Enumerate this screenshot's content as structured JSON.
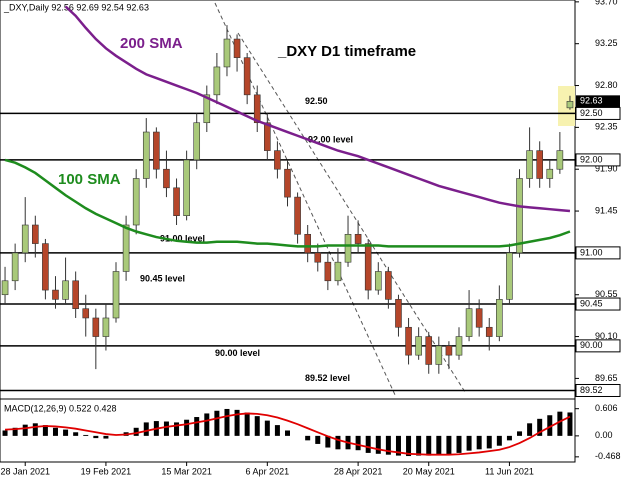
{
  "chart_data": {
    "type": "candlestick",
    "header": "_DXY,Daily  92.56 92.69 92.54 92.63",
    "title": "_DXY D1 timeframe",
    "categories": [
      null,
      null,
      "28 Jan 2021",
      null,
      null,
      null,
      null,
      null,
      null,
      null,
      "19 Feb 2021",
      null,
      null,
      null,
      null,
      null,
      null,
      null,
      "15 Mar 2021",
      null,
      null,
      null,
      null,
      null,
      null,
      null,
      "6 Apr 2021",
      null,
      null,
      null,
      null,
      null,
      null,
      null,
      null,
      "28 Apr 2021",
      null,
      null,
      null,
      null,
      null,
      null,
      "20 May 2021",
      null,
      null,
      null,
      null,
      null,
      null,
      null,
      "11 Jun 2021",
      null,
      null,
      null,
      null,
      null,
      null
    ],
    "candles": [
      [
        90.55,
        90.85,
        90.45,
        90.7
      ],
      [
        90.7,
        91.1,
        90.6,
        91.0
      ],
      [
        91.0,
        91.6,
        90.9,
        91.3
      ],
      [
        91.3,
        91.4,
        90.95,
        91.1
      ],
      [
        91.1,
        91.15,
        90.5,
        90.6
      ],
      [
        90.6,
        90.75,
        90.4,
        90.5
      ],
      [
        90.5,
        90.95,
        90.45,
        90.7
      ],
      [
        90.7,
        90.8,
        90.3,
        90.4
      ],
      [
        90.4,
        90.55,
        90.1,
        90.3
      ],
      [
        90.3,
        90.4,
        89.75,
        90.1
      ],
      [
        90.1,
        90.45,
        89.95,
        90.3
      ],
      [
        90.3,
        90.9,
        90.25,
        90.8
      ],
      [
        90.8,
        91.4,
        90.7,
        91.3
      ],
      [
        91.3,
        91.9,
        91.2,
        91.8
      ],
      [
        91.8,
        92.45,
        91.7,
        92.3
      ],
      [
        92.3,
        92.35,
        91.8,
        91.9
      ],
      [
        91.9,
        92.1,
        91.6,
        91.7
      ],
      [
        91.7,
        91.8,
        91.3,
        91.4
      ],
      [
        91.4,
        92.1,
        91.35,
        92.0
      ],
      [
        92.0,
        92.5,
        91.9,
        92.4
      ],
      [
        92.4,
        92.8,
        92.3,
        92.7
      ],
      [
        92.7,
        93.15,
        92.6,
        93.0
      ],
      [
        93.0,
        93.45,
        92.9,
        93.3
      ],
      [
        93.3,
        93.35,
        92.95,
        93.1
      ],
      [
        93.1,
        93.15,
        92.6,
        92.7
      ],
      [
        92.7,
        92.8,
        92.3,
        92.4
      ],
      [
        92.4,
        92.5,
        92.0,
        92.1
      ],
      [
        92.1,
        92.2,
        91.8,
        91.9
      ],
      [
        91.9,
        92.0,
        91.5,
        91.6
      ],
      [
        91.6,
        91.65,
        91.1,
        91.2
      ],
      [
        91.2,
        91.3,
        90.9,
        91.0
      ],
      [
        91.0,
        91.1,
        90.8,
        90.9
      ],
      [
        90.9,
        91.0,
        90.6,
        90.7
      ],
      [
        90.7,
        91.05,
        90.65,
        90.9
      ],
      [
        90.9,
        91.4,
        90.85,
        91.2
      ],
      [
        91.2,
        91.35,
        91.0,
        91.1
      ],
      [
        91.1,
        91.15,
        90.5,
        90.6
      ],
      [
        90.6,
        90.9,
        90.55,
        90.8
      ],
      [
        90.8,
        90.85,
        90.4,
        90.5
      ],
      [
        90.5,
        90.55,
        90.1,
        90.2
      ],
      [
        90.2,
        90.3,
        89.8,
        89.9
      ],
      [
        89.9,
        90.2,
        89.85,
        90.1
      ],
      [
        90.1,
        90.15,
        89.7,
        89.8
      ],
      [
        89.8,
        90.1,
        89.7,
        90.0
      ],
      [
        90.0,
        90.05,
        89.75,
        89.9
      ],
      [
        89.9,
        90.2,
        89.85,
        90.1
      ],
      [
        90.1,
        90.6,
        90.05,
        90.4
      ],
      [
        90.4,
        90.5,
        90.1,
        90.2
      ],
      [
        90.2,
        90.3,
        89.95,
        90.1
      ],
      [
        90.1,
        90.65,
        90.05,
        90.5
      ],
      [
        90.5,
        91.1,
        90.45,
        91.0
      ],
      [
        91.0,
        91.9,
        90.95,
        91.8
      ],
      [
        91.8,
        92.35,
        91.7,
        92.1
      ],
      [
        92.1,
        92.2,
        91.7,
        91.8
      ],
      [
        91.8,
        92.0,
        91.7,
        91.9
      ],
      [
        91.9,
        92.3,
        91.85,
        92.1
      ],
      [
        92.56,
        92.69,
        92.54,
        92.63
      ]
    ],
    "up_color": "#a9c97a",
    "down_color": "#b5462a",
    "series": [
      {
        "name": "200 SMA",
        "color": "#7b1f8c",
        "values": [
          null,
          null,
          null,
          null,
          null,
          null,
          93.65,
          93.55,
          93.42,
          93.3,
          93.2,
          93.12,
          93.05,
          92.98,
          92.92,
          92.88,
          92.84,
          92.8,
          92.76,
          92.72,
          92.67,
          92.62,
          92.57,
          92.52,
          92.47,
          92.42,
          92.38,
          92.34,
          92.3,
          92.26,
          92.22,
          92.18,
          92.14,
          92.1,
          92.07,
          92.04,
          92.0,
          91.96,
          91.92,
          91.88,
          91.84,
          91.8,
          91.76,
          91.72,
          91.69,
          91.66,
          91.63,
          91.6,
          91.57,
          91.54,
          91.52,
          91.5,
          91.49,
          91.48,
          91.47,
          91.46,
          91.45
        ]
      },
      {
        "name": "100 SMA",
        "color": "#1e8c1e",
        "values": [
          92.0,
          91.97,
          91.92,
          91.86,
          91.78,
          91.7,
          91.62,
          91.55,
          91.48,
          91.42,
          91.37,
          91.32,
          91.27,
          91.23,
          91.2,
          91.17,
          91.15,
          91.13,
          91.12,
          91.11,
          91.11,
          91.12,
          91.12,
          91.12,
          91.11,
          91.1,
          91.1,
          91.09,
          91.08,
          91.07,
          91.07,
          91.07,
          91.08,
          91.08,
          91.08,
          91.08,
          91.08,
          91.08,
          91.07,
          91.07,
          91.07,
          91.07,
          91.07,
          91.07,
          91.07,
          91.07,
          91.07,
          91.07,
          91.07,
          91.07,
          91.08,
          91.1,
          91.12,
          91.14,
          91.16,
          91.19,
          91.23
        ]
      }
    ],
    "levels": [
      {
        "value": 92.5,
        "label": "92.50",
        "text": "92.50"
      },
      {
        "value": 92.0,
        "label": "92.00",
        "text": "92.00 level"
      },
      {
        "value": 91.0,
        "label": "91.00",
        "text": "91.00 level"
      },
      {
        "value": 90.45,
        "label": "90.45",
        "text": "90.45 level"
      },
      {
        "value": 90.0,
        "label": "90.00",
        "text": "90.00 level"
      },
      {
        "value": 89.52,
        "label": "89.52",
        "text": "89.52 level"
      }
    ],
    "last_price": {
      "value": 92.63,
      "label": "92.63"
    },
    "ylim": [
      89.45,
      93.72
    ],
    "yticks": [
      {
        "value": 93.7,
        "label": "93.70"
      },
      93.25,
      {
        "value": 92.8,
        "label": "92.80"
      },
      92.35,
      {
        "value": 91.9,
        "label": "91.90"
      },
      91.45,
      {
        "value": 91.0,
        "label": "91.00"
      },
      90.55,
      {
        "value": 90.1,
        "label": "90.10"
      },
      89.65
    ],
    "macd": {
      "label": "MACD(12,26,9) 0.522 0.428",
      "values": [
        0.12,
        0.18,
        0.25,
        0.28,
        0.24,
        0.18,
        0.14,
        0.08,
        0.02,
        -0.05,
        -0.06,
        0.0,
        0.08,
        0.18,
        0.3,
        0.33,
        0.32,
        0.3,
        0.36,
        0.42,
        0.5,
        0.56,
        0.6,
        0.58,
        0.52,
        0.44,
        0.34,
        0.24,
        0.12,
        0.0,
        -0.1,
        -0.18,
        -0.26,
        -0.3,
        -0.3,
        -0.32,
        -0.38,
        -0.4,
        -0.42,
        -0.44,
        -0.45,
        -0.44,
        -0.44,
        -0.43,
        -0.42,
        -0.38,
        -0.33,
        -0.3,
        -0.28,
        -0.22,
        -0.1,
        0.1,
        0.28,
        0.38,
        0.46,
        0.54,
        0.522
      ],
      "signal": [
        0.14,
        0.15,
        0.17,
        0.2,
        0.22,
        0.21,
        0.19,
        0.16,
        0.12,
        0.08,
        0.04,
        0.02,
        0.03,
        0.06,
        0.11,
        0.16,
        0.2,
        0.23,
        0.26,
        0.3,
        0.34,
        0.39,
        0.44,
        0.48,
        0.5,
        0.49,
        0.46,
        0.41,
        0.34,
        0.26,
        0.17,
        0.08,
        -0.01,
        -0.09,
        -0.15,
        -0.2,
        -0.25,
        -0.3,
        -0.34,
        -0.37,
        -0.4,
        -0.41,
        -0.42,
        -0.42,
        -0.42,
        -0.41,
        -0.39,
        -0.37,
        -0.34,
        -0.31,
        -0.25,
        -0.16,
        -0.05,
        0.08,
        0.2,
        0.32,
        0.428
      ],
      "hist_color": "#000000",
      "signal_color": "#e00000",
      "ylim": [
        -0.583,
        0.8
      ],
      "yticks": [
        0.606,
        {
          "value": 0,
          "label": "0.00"
        },
        -0.468
      ]
    }
  }
}
